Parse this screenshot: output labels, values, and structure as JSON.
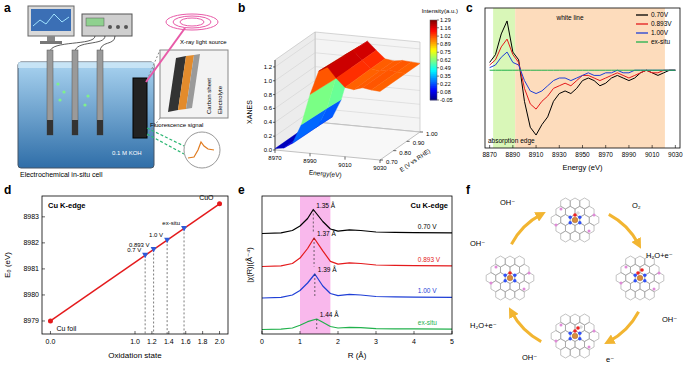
{
  "panel_a": {
    "panel_label": "a",
    "labels": {
      "xray": "X-ray light source",
      "fluorescence": "Fluorescence signal",
      "cell": "Electrochemical in-situ cell",
      "solution": "0.1 M KOH",
      "carbon_sheet": "Carbon sheet",
      "electrolyte": "Electrolyte"
    }
  },
  "chart_data": [
    {
      "panel_label": "b",
      "type": "surface",
      "z_label": "XANES",
      "x_label": "Energy(eV)",
      "y_label": "E (V vs RHE)",
      "colorbar_title": "Intensity(a.u.)",
      "x": [
        8970,
        8975,
        8980,
        8985,
        8990,
        8995,
        9000,
        9005,
        9010,
        9015,
        9020,
        9025,
        9030
      ],
      "y": [
        0.7,
        0.893,
        1.0
      ],
      "z": [
        [
          0.02,
          0.04,
          0.12,
          0.4,
          0.85,
          1.2,
          1.27,
          1.12,
          1.0,
          0.98,
          1.02,
          1.0,
          0.99
        ],
        [
          0.02,
          0.04,
          0.11,
          0.38,
          0.82,
          1.17,
          1.25,
          1.12,
          1.01,
          0.99,
          1.02,
          1.0,
          0.99
        ],
        [
          0.01,
          0.03,
          0.1,
          0.36,
          0.8,
          1.15,
          1.24,
          1.12,
          1.01,
          0.99,
          1.01,
          1.0,
          0.99
        ]
      ],
      "xlim": [
        8970,
        9030
      ],
      "xticks": [
        8970,
        8990,
        9010,
        9030
      ],
      "ylim": [
        0.7,
        1.0
      ],
      "yticks": [
        {
          "value": 0.7,
          "label": "0.70"
        },
        {
          "value": 0.8,
          "label": "0.80"
        },
        {
          "value": 0.9,
          "label": "0.90"
        },
        {
          "value": 1.0,
          "label": "1.00"
        }
      ],
      "zlim": [
        0,
        1.3
      ],
      "zticks": [
        {
          "value": 0,
          "label": "0.0"
        },
        0.2,
        0.4,
        0.6,
        0.8,
        {
          "value": 1,
          "label": "1.0"
        },
        1.2
      ],
      "colorbar_range": [
        -0.05,
        1.29
      ],
      "colorbar_ticks": [
        1.29,
        1.16,
        1.02,
        0.89,
        0.75,
        0.62,
        0.49,
        0.35,
        0.22,
        0.08,
        -0.05
      ]
    },
    {
      "panel_label": "c",
      "type": "line",
      "x_label": "Energy (eV)",
      "x": [
        8870,
        8875,
        8880,
        8885,
        8890,
        8895,
        8900,
        8905,
        8910,
        8915,
        8920,
        8925,
        8930,
        8935,
        8940,
        8945,
        8950,
        8955,
        8960,
        8965,
        8970,
        8975,
        8980,
        8985,
        8990,
        8995,
        9000,
        9005,
        9010,
        9015,
        9020,
        9025,
        9030
      ],
      "series": [
        {
          "name": "0.70V",
          "color": "#000000",
          "values": [
            0.15,
            0.3,
            0.7,
            0.95,
            0.35,
            0.2,
            -0.6,
            -1.1,
            -1.25,
            -1.05,
            -0.9,
            -0.6,
            -0.45,
            -0.4,
            -0.45,
            -0.35,
            -0.2,
            -0.15,
            -0.2,
            -0.3,
            -0.25,
            -0.15,
            -0.1,
            -0.15,
            -0.2,
            -0.15,
            -0.05,
            0,
            -0.05,
            -0.1,
            -0.05,
            0,
            0
          ]
        },
        {
          "name": "0.893V",
          "color": "#e41a1c",
          "values": [
            0.1,
            0.2,
            0.45,
            0.6,
            0.3,
            0.15,
            -0.35,
            -0.65,
            -0.75,
            -0.6,
            -0.5,
            -0.35,
            -0.3,
            -0.25,
            -0.3,
            -0.2,
            -0.1,
            -0.1,
            -0.15,
            -0.2,
            -0.15,
            -0.1,
            -0.05,
            -0.1,
            -0.15,
            -0.1,
            -0.05,
            0,
            -0.05,
            -0.05,
            0,
            0,
            0
          ]
        },
        {
          "name": "1.00V",
          "color": "#1f3fd6",
          "values": [
            0.05,
            0.1,
            0.25,
            0.35,
            0.15,
            0.1,
            -0.2,
            -0.4,
            -0.45,
            -0.4,
            -0.3,
            -0.2,
            -0.15,
            -0.15,
            -0.2,
            -0.15,
            -0.1,
            -0.05,
            -0.1,
            -0.1,
            -0.05,
            -0.05,
            0,
            -0.05,
            -0.05,
            0,
            0,
            0,
            0,
            0,
            0,
            0,
            0
          ]
        },
        {
          "name": "ex-situ",
          "color": "#22b14c",
          "values": [
            0,
            0,
            0,
            0,
            0,
            0,
            0,
            0,
            0,
            0,
            0,
            0,
            0,
            0,
            0,
            0,
            0,
            0,
            0,
            0,
            0,
            0,
            0,
            0,
            0,
            0,
            0,
            0,
            0,
            0,
            0,
            0,
            0
          ]
        }
      ],
      "xlim": [
        8866,
        9034
      ],
      "xticks": [
        8870,
        8890,
        8910,
        8930,
        8950,
        8970,
        8990,
        9010,
        9030
      ],
      "ylim": [
        -1.5,
        1.2
      ],
      "tick_labels": "x",
      "legend": "upper right",
      "regions": [
        {
          "label": "absorption edge",
          "from": 8873,
          "to": 8892,
          "color": "#d9f7b8"
        },
        {
          "label": "white line",
          "from": 8892,
          "to": 9021,
          "color": "#fddcbc"
        }
      ]
    },
    {
      "panel_label": "d",
      "type": "scatter",
      "annotation": "Cu K-edge",
      "x_label": "Oxidation state",
      "y_label": "E₀ (eV)",
      "series": [
        {
          "type": "line",
          "color": "#e41a1c",
          "marker": "circle",
          "x": [
            0,
            2
          ],
          "values": [
            8979,
            8983.5
          ],
          "point_labels": [
            "Cu foil",
            "CuO"
          ]
        },
        {
          "type": "scatter",
          "color": "#2f5bd8",
          "marker": "triangle",
          "x": [
            1.12,
            1.22,
            1.38,
            1.58
          ],
          "values": [
            8981.52,
            8981.745,
            8982.105,
            8982.555
          ],
          "point_labels": [
            "0.7 V",
            "0.893 V",
            "1.0 V",
            "ex-situ"
          ]
        }
      ],
      "xlim": [
        -0.1,
        2.1
      ],
      "xticks": [
        {
          "value": 0,
          "label": "0.0"
        },
        {
          "value": 1,
          "label": "1.0"
        },
        1.2,
        1.4,
        1.6,
        1.8,
        {
          "value": 2,
          "label": "2.0"
        }
      ],
      "ylim": [
        8978.5,
        8983.8
      ],
      "yticks": [
        8979,
        8980,
        8981,
        8982,
        8983
      ]
    },
    {
      "panel_label": "e",
      "type": "line",
      "annotation": "Cu K-edge",
      "x_label": "R (Å)",
      "y_label": "|χ(R)|(Å⁻⁴)",
      "series": [
        {
          "name": "0.70 V",
          "color": "#000000",
          "x": [
            0,
            0.5,
            0.8,
            1.0,
            1.2,
            1.35,
            1.6,
            1.8,
            2.0,
            2.3,
            2.6,
            3.0,
            3.5,
            4.0,
            5.0
          ],
          "values": [
            3.2,
            3.22,
            3.3,
            3.45,
            3.7,
            4.0,
            3.6,
            3.35,
            3.28,
            3.32,
            3.3,
            3.25,
            3.24,
            3.23,
            3.22
          ],
          "peak": 1.35,
          "peak_label": "1.35 Å"
        },
        {
          "name": "0.893 V",
          "color": "#e41a1c",
          "x": [
            0,
            0.5,
            0.8,
            1.0,
            1.2,
            1.37,
            1.6,
            1.8,
            2.0,
            2.3,
            2.6,
            3.0,
            3.5,
            4.0,
            5.0
          ],
          "values": [
            2.1,
            2.12,
            2.2,
            2.38,
            2.7,
            3.05,
            2.62,
            2.27,
            2.18,
            2.22,
            2.2,
            2.15,
            2.14,
            2.13,
            2.12
          ],
          "peak": 1.37,
          "peak_label": "1.37 Å"
        },
        {
          "name": "1.00 V",
          "color": "#1f3fd6",
          "x": [
            0,
            0.5,
            0.8,
            1.0,
            1.2,
            1.39,
            1.6,
            1.8,
            2.0,
            2.3,
            2.6,
            3.0,
            3.5,
            4.0,
            5.0
          ],
          "values": [
            1.05,
            1.07,
            1.15,
            1.3,
            1.55,
            1.85,
            1.45,
            1.2,
            1.13,
            1.17,
            1.15,
            1.1,
            1.09,
            1.08,
            1.07
          ],
          "peak": 1.39,
          "peak_label": "1.39 Å"
        },
        {
          "name": "ex-situ",
          "color": "#22b14c",
          "x": [
            0,
            0.5,
            0.8,
            1.0,
            1.2,
            1.44,
            1.6,
            1.8,
            2.0,
            2.3,
            2.6,
            3.0,
            3.5,
            4.0,
            5.0
          ],
          "values": [
            0,
            0.01,
            0.05,
            0.14,
            0.26,
            0.35,
            0.24,
            0.1,
            0.05,
            0.07,
            0.06,
            0.03,
            0.02,
            0.02,
            0.01
          ],
          "peak": 1.44,
          "peak_label": "1.44 Å"
        }
      ],
      "xlim": [
        0,
        5
      ],
      "xticks": [
        0,
        1,
        2,
        3,
        4,
        5
      ],
      "ylim": [
        -0.15,
        4.45
      ],
      "tick_labels": "x",
      "regions": [
        {
          "from": 1.0,
          "to": 1.8,
          "color": "#f9b8ec"
        }
      ]
    }
  ],
  "panel_f": {
    "panel_label": "f",
    "labels": [
      "OH⁻",
      "O₂",
      "H₂O+e⁻",
      "OH⁻",
      "e⁻",
      "OH⁻",
      "H₂O+e⁻",
      "OH⁻"
    ]
  }
}
